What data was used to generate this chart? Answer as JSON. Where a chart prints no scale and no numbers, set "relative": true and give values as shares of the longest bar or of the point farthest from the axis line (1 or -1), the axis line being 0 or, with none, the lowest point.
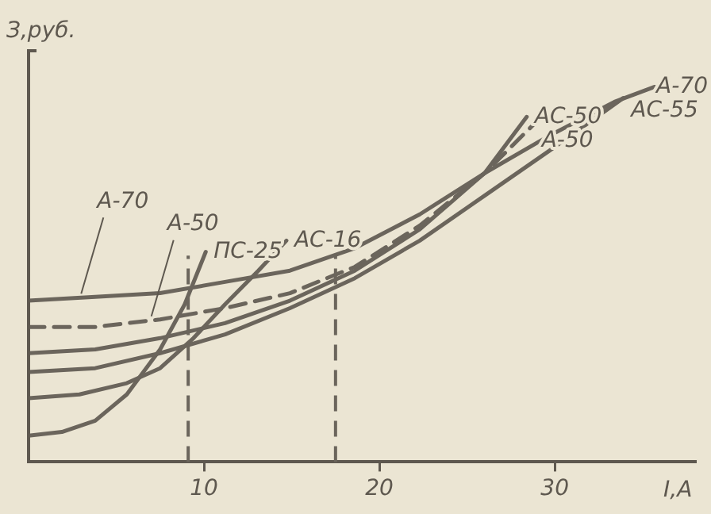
{
  "chart_data": {
    "type": "line",
    "ylabel": "З,руб.",
    "xlabel": "I,A",
    "relative": true,
    "xlim": [
      0,
      38
    ],
    "xticks": [
      10,
      20,
      30
    ],
    "grid": false,
    "legend": false,
    "marker": "none",
    "series": [
      {
        "name": "А-70",
        "color": "#6b655c",
        "line_style": "solid",
        "x": [
          0,
          3.8,
          7.5,
          11.2,
          14.9,
          18.6,
          22.3,
          26,
          29.7,
          33.4,
          35.7
        ],
        "values": [
          0.43,
          0.44,
          0.45,
          0.48,
          0.51,
          0.57,
          0.66,
          0.77,
          0.87,
          0.96,
          1.0
        ]
      },
      {
        "name": "А-50",
        "color": "#6b655c",
        "line_style": "dashed",
        "x": [
          0,
          3.8,
          7.5,
          11.2,
          14.9,
          18.6,
          22.3,
          26,
          28.8
        ],
        "values": [
          0.36,
          0.36,
          0.38,
          0.41,
          0.45,
          0.52,
          0.63,
          0.77,
          0.9
        ]
      },
      {
        "name": "АС-50",
        "color": "#6b655c",
        "line_style": "solid",
        "x": [
          0,
          3.8,
          7.5,
          11.2,
          14.9,
          18.6,
          22.3,
          26,
          28.4
        ],
        "values": [
          0.29,
          0.3,
          0.33,
          0.37,
          0.43,
          0.51,
          0.62,
          0.77,
          0.92
        ]
      },
      {
        "name": "АС-55",
        "color": "#6b655c",
        "line_style": "solid",
        "x": [
          0,
          3.8,
          7.5,
          11.2,
          14.9,
          18.6,
          22.3,
          26,
          29.7,
          33.9
        ],
        "values": [
          0.24,
          0.25,
          0.29,
          0.34,
          0.41,
          0.49,
          0.59,
          0.71,
          0.83,
          0.97
        ]
      },
      {
        "name": "АС-16",
        "color": "#6b655c",
        "line_style": "solid",
        "x": [
          0,
          2.9,
          5.6,
          7.5,
          9.4,
          11.2,
          13.1,
          14.7
        ],
        "values": [
          0.17,
          0.18,
          0.21,
          0.25,
          0.33,
          0.42,
          0.51,
          0.59
        ]
      },
      {
        "name": "ПС-25",
        "color": "#6b655c",
        "line_style": "solid",
        "x": [
          0,
          1.9,
          3.8,
          5.6,
          7.5,
          8.9,
          10.1
        ],
        "values": [
          0.07,
          0.08,
          0.11,
          0.18,
          0.3,
          0.42,
          0.56
        ]
      }
    ],
    "ref_lines": [
      {
        "axis": "x",
        "value": 9.1,
        "color": "#6b655c",
        "line_style": "dashed"
      },
      {
        "axis": "x",
        "value": 17.5,
        "color": "#6b655c",
        "line_style": "dashed"
      }
    ],
    "annotations": [
      {
        "text": "А-70",
        "x": 3,
        "y": 0.44
      },
      {
        "text": "А-50",
        "x": 7,
        "y": 0.38
      }
    ]
  }
}
